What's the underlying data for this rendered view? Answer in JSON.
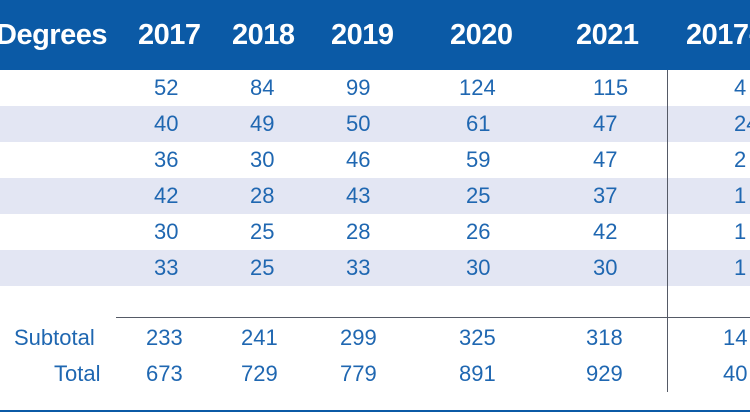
{
  "header": {
    "first": "Degrees",
    "years": [
      "2017",
      "2018",
      "2019",
      "2020",
      "2021"
    ],
    "last": "2017-"
  },
  "rows": [
    {
      "label": "",
      "values": [
        "52",
        "84",
        "99",
        "124",
        "115"
      ],
      "last": "4"
    },
    {
      "label": "",
      "values": [
        "40",
        "49",
        "50",
        "61",
        "47"
      ],
      "last": "24"
    },
    {
      "label": "",
      "values": [
        "36",
        "30",
        "46",
        "59",
        "47"
      ],
      "last": "2"
    },
    {
      "label": "",
      "values": [
        "42",
        "28",
        "43",
        "25",
        "37"
      ],
      "last": "1"
    },
    {
      "label": "",
      "values": [
        "30",
        "25",
        "28",
        "26",
        "42"
      ],
      "last": "1"
    },
    {
      "label": "",
      "values": [
        "33",
        "25",
        "33",
        "30",
        "30"
      ],
      "last": "1"
    }
  ],
  "summary": [
    {
      "label": "Subtotal",
      "values": [
        "233",
        "241",
        "299",
        "325",
        "318"
      ],
      "last": "14"
    },
    {
      "label": "Total",
      "values": [
        "673",
        "729",
        "779",
        "891",
        "929"
      ],
      "last": "40"
    }
  ]
}
